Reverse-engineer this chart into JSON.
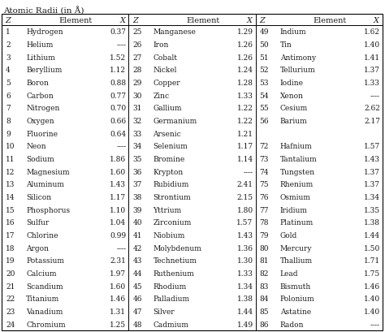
{
  "title": "Atomic Radii (in Å)",
  "col1": [
    [
      1,
      "Hydrogen",
      "0.37"
    ],
    [
      2,
      "Helium",
      "----"
    ],
    [
      3,
      "Lithium",
      "1.52"
    ],
    [
      4,
      "Beryllium",
      "1.12"
    ],
    [
      5,
      "Boron",
      "0.88"
    ],
    [
      6,
      "Carbon",
      "0.77"
    ],
    [
      7,
      "Nitrogen",
      "0.70"
    ],
    [
      8,
      "Oxygen",
      "0.66"
    ],
    [
      9,
      "Fluorine",
      "0.64"
    ],
    [
      10,
      "Neon",
      "----"
    ],
    [
      11,
      "Sodium",
      "1.86"
    ],
    [
      12,
      "Magnesium",
      "1.60"
    ],
    [
      13,
      "Aluminum",
      "1.43"
    ],
    [
      14,
      "Silicon",
      "1.17"
    ],
    [
      15,
      "Phosphorus",
      "1.10"
    ],
    [
      16,
      "Sulfur",
      "1.04"
    ],
    [
      17,
      "Chlorine",
      "0.99"
    ],
    [
      18,
      "Argon",
      "----"
    ],
    [
      19,
      "Potassium",
      "2.31"
    ],
    [
      20,
      "Calcium",
      "1.97"
    ],
    [
      21,
      "Scandium",
      "1.60"
    ],
    [
      22,
      "Titanium",
      "1.46"
    ],
    [
      23,
      "Vanadium",
      "1.31"
    ],
    [
      24,
      "Chromium",
      "1.25"
    ]
  ],
  "col2": [
    [
      25,
      "Manganese",
      "1.29"
    ],
    [
      26,
      "Iron",
      "1.26"
    ],
    [
      27,
      "Cobalt",
      "1.26"
    ],
    [
      28,
      "Nickel",
      "1.24"
    ],
    [
      29,
      "Copper",
      "1.28"
    ],
    [
      30,
      "Zinc",
      "1.33"
    ],
    [
      31,
      "Gallium",
      "1.22"
    ],
    [
      32,
      "Germanium",
      "1.22"
    ],
    [
      33,
      "Arsenic",
      "1.21"
    ],
    [
      34,
      "Selenium",
      "1.17"
    ],
    [
      35,
      "Bromine",
      "1.14"
    ],
    [
      36,
      "Krypton",
      "----"
    ],
    [
      37,
      "Rubidium",
      "2.41"
    ],
    [
      38,
      "Strontium",
      "2.15"
    ],
    [
      39,
      "Yttrium",
      "1.80"
    ],
    [
      40,
      "Zirconium",
      "1.57"
    ],
    [
      41,
      "Niobium",
      "1.43"
    ],
    [
      42,
      "Molybdenum",
      "1.36"
    ],
    [
      43,
      "Technetium",
      "1.30"
    ],
    [
      44,
      "Ruthenium",
      "1.33"
    ],
    [
      45,
      "Rhodium",
      "1.34"
    ],
    [
      46,
      "Palladium",
      "1.38"
    ],
    [
      47,
      "Silver",
      "1.44"
    ],
    [
      48,
      "Cadmium",
      "1.49"
    ]
  ],
  "col3": [
    [
      49,
      "Indium",
      "1.62"
    ],
    [
      50,
      "Tin",
      "1.40"
    ],
    [
      51,
      "Antimony",
      "1.41"
    ],
    [
      52,
      "Tellurium",
      "1.37"
    ],
    [
      53,
      "Iodine",
      "1.33"
    ],
    [
      54,
      "Xenon",
      "----"
    ],
    [
      55,
      "Cesium",
      "2.62"
    ],
    [
      56,
      "Barium",
      "2.17"
    ],
    [
      null,
      null,
      null
    ],
    [
      72,
      "Hafnium",
      "1.57"
    ],
    [
      73,
      "Tantalium",
      "1.43"
    ],
    [
      74,
      "Tungsten",
      "1.37"
    ],
    [
      75,
      "Rhenium",
      "1.37"
    ],
    [
      76,
      "Osmium",
      "1.34"
    ],
    [
      77,
      "Iridium",
      "1.35"
    ],
    [
      78,
      "Platinum",
      "1.38"
    ],
    [
      79,
      "Gold",
      "1.44"
    ],
    [
      80,
      "Mercury",
      "1.50"
    ],
    [
      81,
      "Thallium",
      "1.71"
    ],
    [
      82,
      "Lead",
      "1.75"
    ],
    [
      83,
      "Bismuth",
      "1.46"
    ],
    [
      84,
      "Polonium",
      "1.40"
    ],
    [
      85,
      "Astatine",
      "1.40"
    ],
    [
      86,
      "Radon",
      "----"
    ]
  ],
  "bg_color": "#ffffff",
  "text_color": "#1a1a1a",
  "title_fontsize": 7.5,
  "header_fontsize": 7.0,
  "data_fontsize": 6.5
}
